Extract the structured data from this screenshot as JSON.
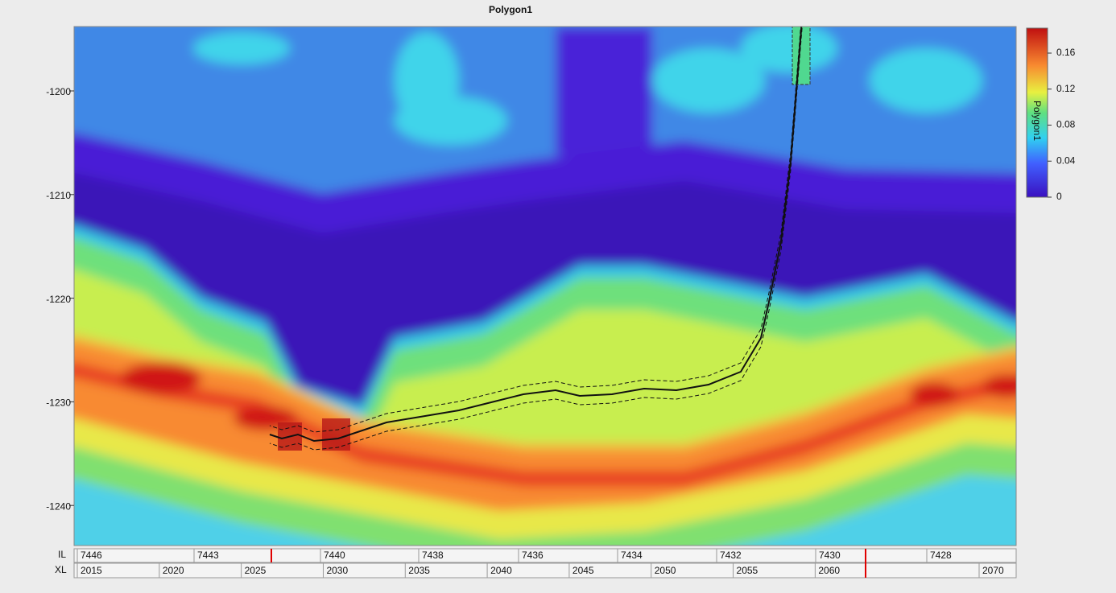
{
  "title": "Polygon1",
  "depth_axis": {
    "ticks": [
      -1200,
      -1210,
      -1220,
      -1230,
      -1240
    ]
  },
  "inline_axis": {
    "label": "IL",
    "ticks": [
      7446,
      7443,
      7440,
      7438,
      7436,
      7434,
      7432,
      7430,
      7428
    ]
  },
  "crossline_axis": {
    "label": "XL",
    "ticks": [
      2015,
      2020,
      2025,
      2030,
      2035,
      2040,
      2045,
      2050,
      2055,
      2060,
      2070
    ]
  },
  "colorbar": {
    "label": "Polygon1",
    "ticks": [
      0.16,
      0.12,
      0.08,
      0.04,
      0
    ]
  }
}
